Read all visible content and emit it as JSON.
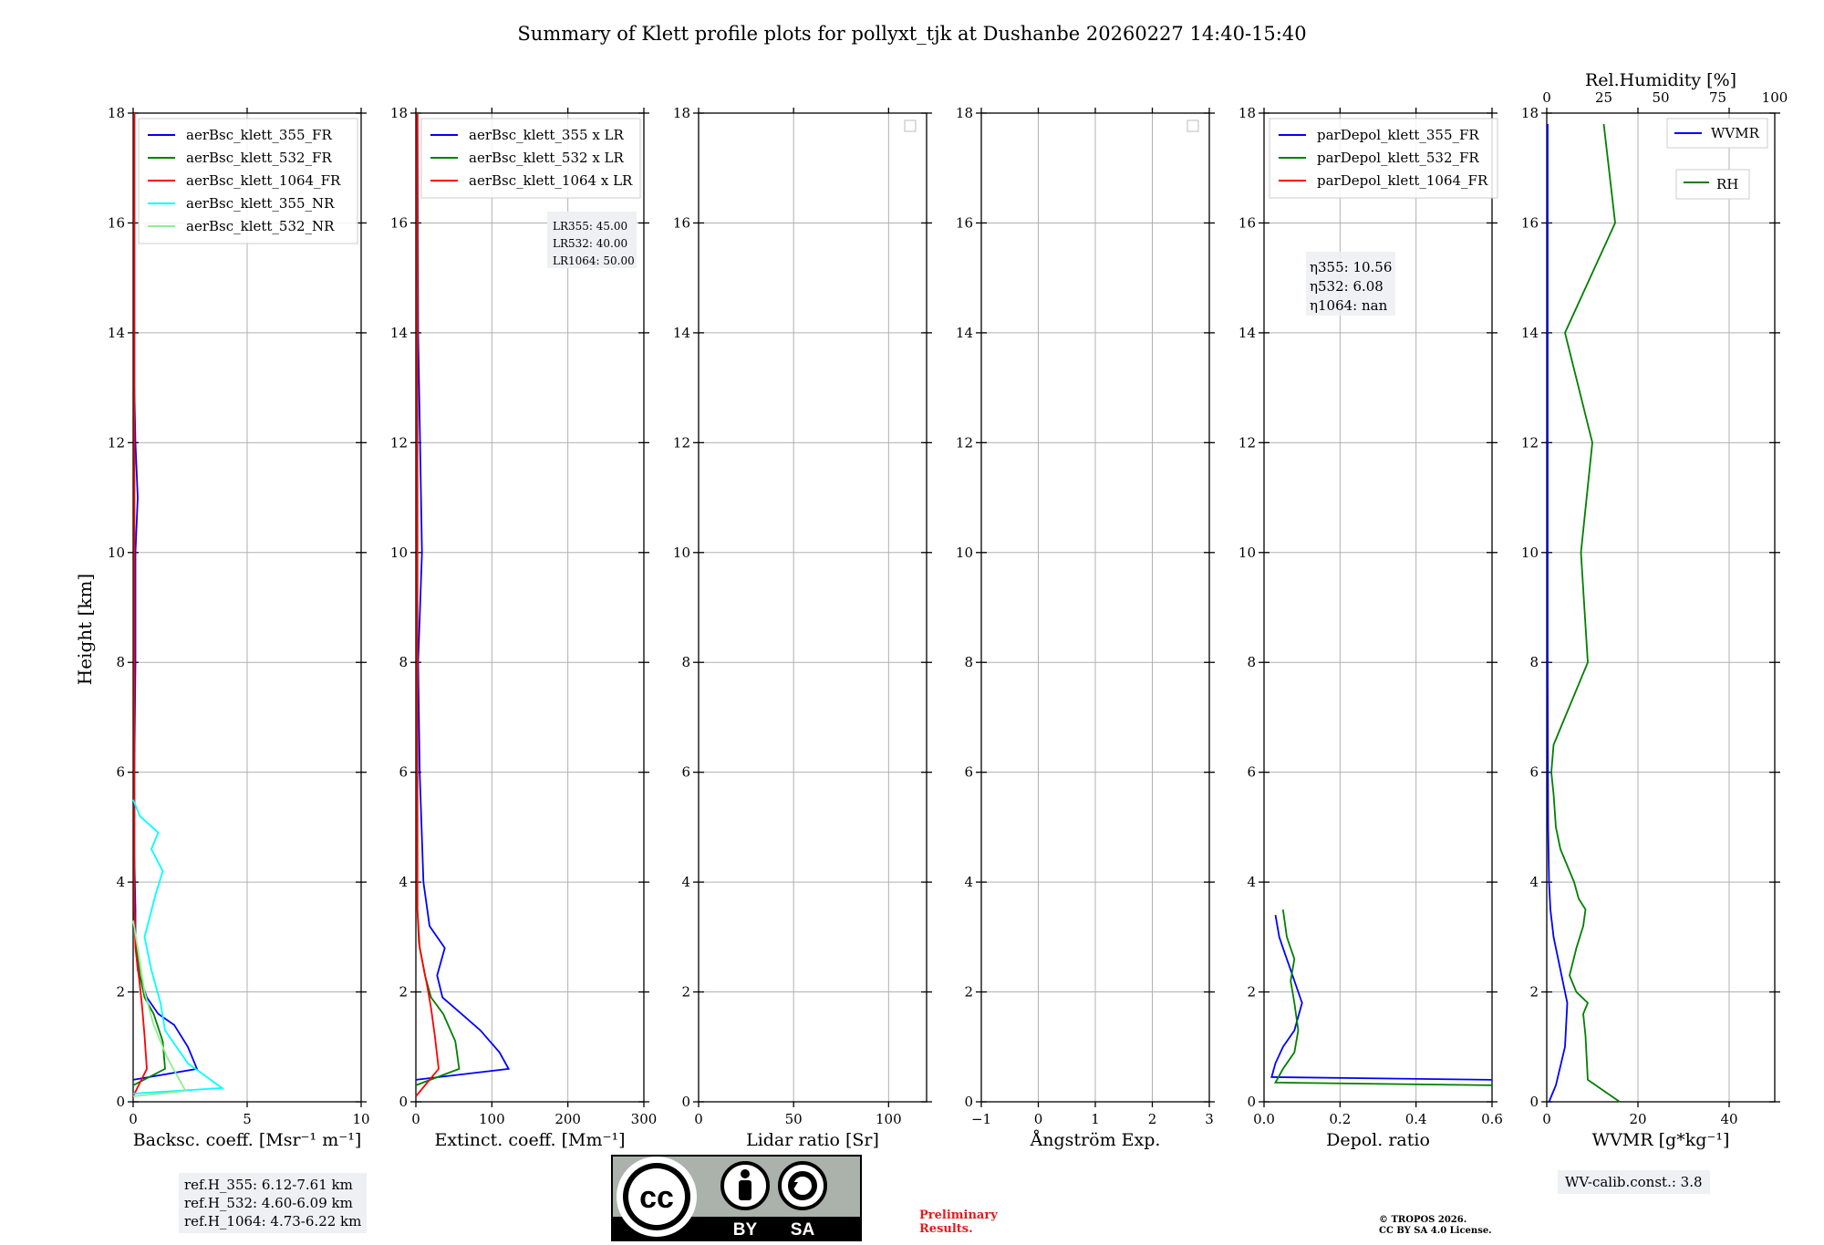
{
  "title": "Summary of Klett profile plots for pollyxt_tjk at Dushanbe 20260227 14:40-15:40",
  "ylabel": "Height [km]",
  "yticks": [
    0,
    2,
    4,
    6,
    8,
    10,
    12,
    14,
    16,
    18
  ],
  "ylim": [
    0,
    18
  ],
  "panels": [
    {
      "id": "backscatter",
      "xlabel": "Backsc. coeff. [Msr⁻¹ m⁻¹]",
      "xlim": [
        0,
        10
      ],
      "xticks": [
        0,
        5,
        10
      ],
      "legend": [
        "aerBsc_klett_355_FR",
        "aerBsc_klett_532_FR",
        "aerBsc_klett_1064_FR",
        "aerBsc_klett_355_NR",
        "aerBsc_klett_532_NR"
      ]
    },
    {
      "id": "extinction",
      "xlabel": "Extinct. coeff. [Mm⁻¹]",
      "xlim": [
        0,
        300
      ],
      "xticks": [
        0,
        100,
        200,
        300
      ],
      "legend": [
        "aerBsc_klett_355 x LR",
        "aerBsc_klett_532 x LR",
        "aerBsc_klett_1064 x LR"
      ],
      "lidar_ratios": [
        "LR355: 45.00",
        "LR532: 40.00",
        "LR1064: 50.00"
      ]
    },
    {
      "id": "lidar-ratio",
      "xlabel": "Lidar ratio [Sr]",
      "xlim": [
        0,
        120
      ],
      "xticks": [
        0,
        50,
        100
      ]
    },
    {
      "id": "angstrom",
      "xlabel": "Ångström Exp.",
      "xlim": [
        -1,
        3
      ],
      "xticks": [
        -1,
        0,
        1,
        2,
        3
      ]
    },
    {
      "id": "depol",
      "xlabel": "Depol. ratio",
      "xlim": [
        0,
        0.6
      ],
      "xticks": [
        0.0,
        0.2,
        0.4,
        0.6
      ],
      "legend": [
        "parDepol_klett_355_FR",
        "parDepol_klett_532_FR",
        "parDepol_klett_1064_FR"
      ],
      "eta": [
        "η355: 10.56",
        "η532: 6.08",
        "η1064: nan"
      ]
    },
    {
      "id": "wvmr",
      "xlabel": "WVMR [g*kg⁻¹]",
      "xlim": [
        0,
        50
      ],
      "xticks": [
        0,
        20,
        40
      ],
      "top_xlabel": "Rel.Humidity [%]",
      "top_xticks": [
        0,
        25,
        50,
        75,
        100
      ],
      "legend": [
        "WVMR",
        "RH"
      ]
    }
  ],
  "chart_data": {
    "type": "line",
    "title": "Summary of Klett profile plots for pollyxt_tjk at Dushanbe 20260227 14:40-15:40",
    "backscatter": {
      "series": [
        {
          "name": "aerBsc_klett_355_FR",
          "color": "#0000ff",
          "x": [
            0.0,
            2.8,
            2.4,
            1.8,
            1.1,
            0.6,
            0.2,
            0.1,
            0.1,
            0.05,
            0.05,
            0.1,
            0.1,
            0.1,
            0.2,
            0.1,
            0.05,
            0.05,
            0.05
          ],
          "y": [
            0.4,
            0.6,
            1.0,
            1.4,
            1.6,
            1.9,
            2.4,
            2.9,
            3.5,
            4.5,
            6,
            8,
            9,
            10,
            11,
            12,
            13,
            15,
            18
          ]
        },
        {
          "name": "aerBsc_klett_532_FR",
          "color": "#008000",
          "x": [
            0.0,
            1.4,
            1.3,
            0.9,
            0.5,
            0.3,
            0.1,
            0.05,
            0.05,
            0.05
          ],
          "y": [
            0.3,
            0.6,
            1.1,
            1.6,
            1.9,
            2.3,
            2.9,
            3.5,
            8,
            18
          ]
        },
        {
          "name": "aerBsc_klett_1064_FR",
          "color": "#ff0000",
          "x": [
            0.0,
            0.6,
            0.5,
            0.4,
            0.3,
            0.1,
            0.05,
            0.05
          ],
          "y": [
            0.1,
            0.6,
            1.2,
            1.7,
            2.1,
            2.8,
            3.5,
            18
          ]
        },
        {
          "name": "aerBsc_klett_355_NR",
          "color": "#00ffff",
          "x": [
            0.0,
            3.9,
            2.4,
            1.4,
            1.2,
            0.8,
            0.5,
            1.0,
            1.3,
            0.8,
            1.1,
            0.3,
            0.0
          ],
          "y": [
            0.15,
            0.25,
            0.7,
            1.3,
            1.8,
            2.4,
            3.0,
            3.8,
            4.2,
            4.6,
            4.9,
            5.2,
            5.5
          ]
        },
        {
          "name": "aerBsc_klett_532_NR",
          "color": "#90ee90",
          "x": [
            0.0,
            2.3,
            1.5,
            0.9,
            0.5,
            0.2,
            0.0
          ],
          "y": [
            0.1,
            0.2,
            0.8,
            1.4,
            2.0,
            2.8,
            3.3
          ]
        }
      ]
    },
    "extinction": {
      "series": [
        {
          "name": "aerBsc_klett_355 x LR",
          "color": "#0000ff",
          "x": [
            0,
            122,
            110,
            85,
            60,
            35,
            28,
            38,
            18,
            10,
            5,
            3,
            8,
            3,
            2
          ],
          "y": [
            0.4,
            0.6,
            0.9,
            1.3,
            1.6,
            1.9,
            2.3,
            2.8,
            3.2,
            4,
            6,
            8,
            10,
            14,
            18
          ]
        },
        {
          "name": "aerBsc_klett_532 x LR",
          "color": "#008000",
          "x": [
            0,
            57,
            52,
            36,
            20,
            12,
            4,
            2,
            2
          ],
          "y": [
            0.3,
            0.6,
            1.1,
            1.6,
            1.9,
            2.3,
            2.9,
            3.5,
            18
          ]
        },
        {
          "name": "aerBsc_klett_1064 x LR",
          "color": "#ff0000",
          "x": [
            0,
            30,
            25,
            20,
            15,
            5,
            2,
            2
          ],
          "y": [
            0.1,
            0.6,
            1.2,
            1.7,
            2.1,
            2.8,
            3.5,
            18
          ]
        }
      ]
    },
    "lidar_ratio": {
      "series": []
    },
    "angstrom": {
      "series": []
    },
    "depol": {
      "series": [
        {
          "name": "parDepol_klett_355_FR",
          "color": "#0000ff",
          "x": [
            0.6,
            0.02,
            0.03,
            0.05,
            0.08,
            0.1,
            0.07,
            0.05,
            0.04,
            0.03
          ],
          "y": [
            0.4,
            0.45,
            0.7,
            1.0,
            1.3,
            1.8,
            2.4,
            2.8,
            3.0,
            3.4
          ]
        },
        {
          "name": "parDepol_klett_532_FR",
          "color": "#008000",
          "x": [
            0.6,
            0.03,
            0.05,
            0.08,
            0.09,
            0.08,
            0.07,
            0.08,
            0.06,
            0.05
          ],
          "y": [
            0.3,
            0.35,
            0.6,
            0.9,
            1.3,
            1.8,
            2.2,
            2.6,
            3.0,
            3.5
          ]
        },
        {
          "name": "parDepol_klett_1064_FR",
          "color": "#ff0000",
          "x": [],
          "y": []
        }
      ]
    },
    "wvmr": {
      "series": [
        {
          "name": "WVMR",
          "color": "#0000ff",
          "x": [
            0.5,
            2,
            4,
            4.5,
            3,
            1.5,
            0.8,
            0.5,
            0.3,
            0.2,
            0.2,
            0.2
          ],
          "y": [
            0,
            0.3,
            1.0,
            1.8,
            2.4,
            3.0,
            3.5,
            4.0,
            5,
            8,
            12,
            17.8
          ]
        },
        {
          "name": "RH",
          "color": "#008000",
          "x": [
            32,
            18,
            17,
            16,
            18,
            13,
            10,
            13,
            16,
            17,
            14,
            12,
            10,
            6,
            4,
            3,
            2,
            3,
            8,
            18,
            15,
            20,
            8,
            30,
            25
          ],
          "y": [
            0,
            0.4,
            1.2,
            1.6,
            1.8,
            2.0,
            2.3,
            2.8,
            3.2,
            3.5,
            3.7,
            4.0,
            4.2,
            4.6,
            5.0,
            5.6,
            6.0,
            6.5,
            7.0,
            8.0,
            10,
            12,
            14,
            16,
            17.8
          ]
        }
      ]
    }
  },
  "ref_heights": [
    "ref.H_355: 6.12-7.61 km",
    "ref.H_532: 4.60-6.09 km",
    "ref.H_1064: 4.73-6.22 km"
  ],
  "wv_calib": "WV-calib.const.: 3.8",
  "license_badge": {
    "cc": "cc",
    "by": "BY",
    "sa": "SA"
  },
  "preliminary": [
    "Preliminary",
    "Results."
  ],
  "copyright": [
    "© TROPOS 2026.",
    "CC BY SA 4.0 License."
  ],
  "colors": {
    "c355": "#0000ff",
    "c532": "#008000",
    "c1064": "#ff0000",
    "c355nr": "#00ffff",
    "c532nr": "#90ee90",
    "grid": "#b0b0b0"
  }
}
